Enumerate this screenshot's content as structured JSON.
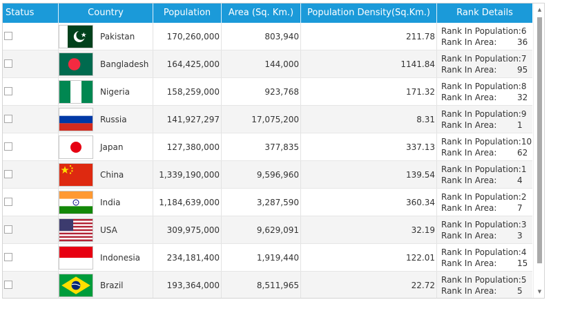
{
  "columns": {
    "status": "Status",
    "country": "Country",
    "population": "Population",
    "area": "Area (Sq. Km.)",
    "density": "Population Density(Sq.Km.)",
    "rank": "Rank Details"
  },
  "rank_labels": {
    "population": "Rank In Population:",
    "area": "Rank In Area:"
  },
  "rows": [
    {
      "country": "Pakistan",
      "population": "170,260,000",
      "area": "803,940",
      "density": "211.78",
      "rank_population": "6",
      "rank_area": "36",
      "flag_icon": "pakistan-flag-icon",
      "checked": false
    },
    {
      "country": "Bangladesh",
      "population": "164,425,000",
      "area": "144,000",
      "density": "1141.84",
      "rank_population": "7",
      "rank_area": "95",
      "flag_icon": "bangladesh-flag-icon",
      "checked": false
    },
    {
      "country": "Nigeria",
      "population": "158,259,000",
      "area": "923,768",
      "density": "171.32",
      "rank_population": "8",
      "rank_area": "32",
      "flag_icon": "nigeria-flag-icon",
      "checked": false
    },
    {
      "country": "Russia",
      "population": "141,927,297",
      "area": "17,075,200",
      "density": "8.31",
      "rank_population": "9",
      "rank_area": "1",
      "flag_icon": "russia-flag-icon",
      "checked": false
    },
    {
      "country": "Japan",
      "population": "127,380,000",
      "area": "377,835",
      "density": "337.13",
      "rank_population": "10",
      "rank_area": "62",
      "flag_icon": "japan-flag-icon",
      "checked": false
    },
    {
      "country": "China",
      "population": "1,339,190,000",
      "area": "9,596,960",
      "density": "139.54",
      "rank_population": "1",
      "rank_area": "4",
      "flag_icon": "china-flag-icon",
      "checked": false
    },
    {
      "country": "India",
      "population": "1,184,639,000",
      "area": "3,287,590",
      "density": "360.34",
      "rank_population": "2",
      "rank_area": "7",
      "flag_icon": "india-flag-icon",
      "checked": false
    },
    {
      "country": "USA",
      "population": "309,975,000",
      "area": "9,629,091",
      "density": "32.19",
      "rank_population": "3",
      "rank_area": "3",
      "flag_icon": "usa-flag-icon",
      "checked": false
    },
    {
      "country": "Indonesia",
      "population": "234,181,400",
      "area": "1,919,440",
      "density": "122.01",
      "rank_population": "4",
      "rank_area": "15",
      "flag_icon": "indonesia-flag-icon",
      "checked": false
    },
    {
      "country": "Brazil",
      "population": "193,364,000",
      "area": "8,511,965",
      "density": "22.72",
      "rank_population": "5",
      "rank_area": "5",
      "flag_icon": "brazil-flag-icon",
      "checked": false
    }
  ],
  "colors": {
    "header_bg": "#1b9ad9",
    "header_text": "#ffffff",
    "alt_row": "#f4f4f4"
  }
}
